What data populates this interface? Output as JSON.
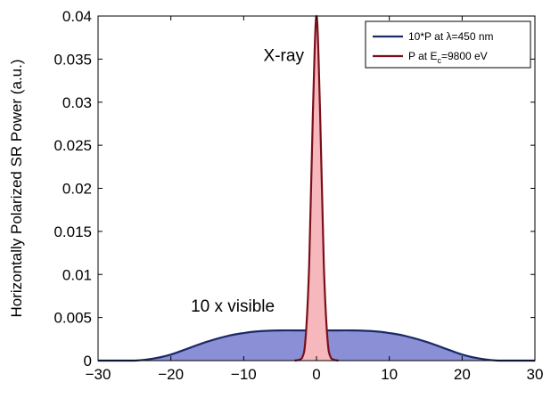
{
  "chart_data": {
    "type": "area",
    "title": "",
    "xlabel": "",
    "ylabel": "Horizontally Polarized SR Power (a.u.)",
    "xlim": [
      -30,
      30
    ],
    "ylim": [
      0,
      0.04
    ],
    "xticks": [
      "−30",
      "−20",
      "−10",
      "0",
      "10",
      "20",
      "30"
    ],
    "yticks": [
      "0",
      "0.005",
      "0.01",
      "0.015",
      "0.02",
      "0.025",
      "0.03",
      "0.035",
      "0.04"
    ],
    "grid": false,
    "legend_position": "top-right",
    "legend": [
      {
        "prefix": "10*P at ",
        "greek": "λ",
        "suffix": "=450 nm"
      },
      {
        "prefix": "P at E",
        "sub": "c",
        "suffix": "=9800 eV"
      }
    ],
    "annotations": [
      {
        "text": "X-ray",
        "x": -4.5,
        "y": 0.0348
      },
      {
        "text": "10 x visible",
        "x": -11.5,
        "y": 0.0057
      }
    ],
    "series": [
      {
        "color": "#1b2a66",
        "fill": "#8b8fd6",
        "x": [
          -30,
          -25,
          -22,
          -20,
          -18,
          -15,
          -12,
          -10,
          -8,
          -5,
          -2,
          0,
          2,
          5,
          8,
          10,
          12,
          15,
          18,
          20,
          22,
          25,
          30
        ],
        "y": [
          0,
          0,
          0.0003,
          0.0007,
          0.0013,
          0.0022,
          0.0029,
          0.0032,
          0.0034,
          0.0035,
          0.0035,
          0.0035,
          0.0035,
          0.0035,
          0.0034,
          0.0032,
          0.0029,
          0.0022,
          0.0013,
          0.0007,
          0.0003,
          0,
          0
        ]
      },
      {
        "color": "#7a0f1a",
        "fill": "#f6b8bd",
        "x": [
          -3,
          -2,
          -1.5,
          -1,
          -0.5,
          0,
          0.5,
          1,
          1.5,
          2,
          3
        ],
        "y": [
          0,
          0.0003,
          0.0026,
          0.0113,
          0.0286,
          0.04,
          0.0286,
          0.0113,
          0.0026,
          0.0003,
          0
        ]
      }
    ]
  }
}
